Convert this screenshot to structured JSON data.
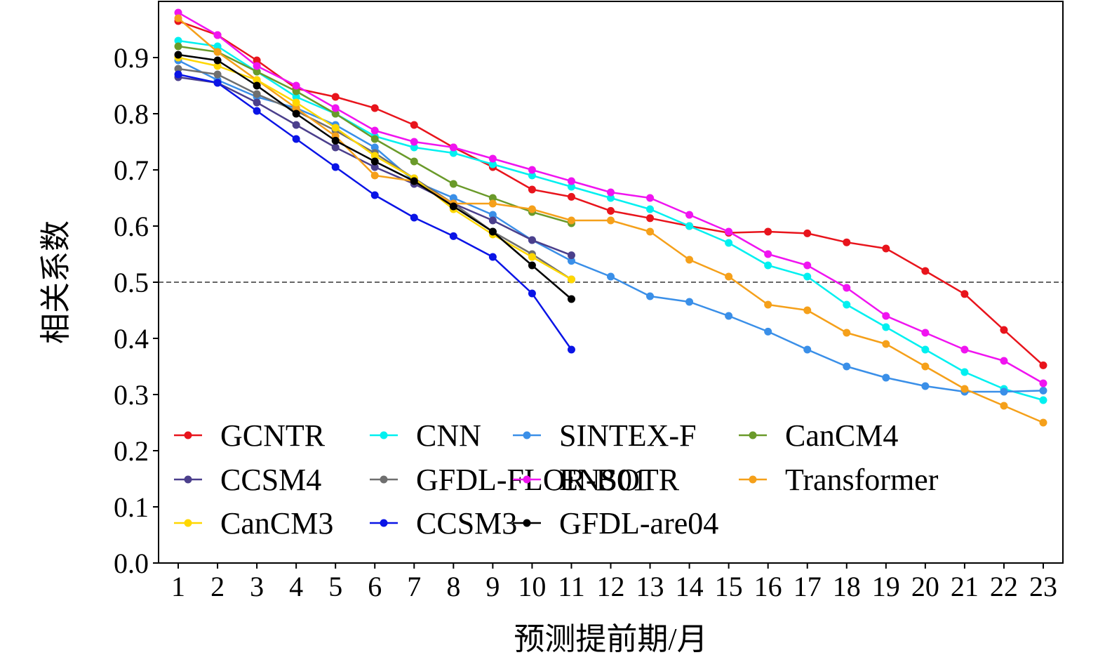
{
  "chart_data": {
    "type": "line",
    "title": "",
    "xlabel": "预测提前期/月",
    "ylabel": "相关系数",
    "xlim": [
      0.5,
      23.5
    ],
    "ylim": [
      0.0,
      1.0
    ],
    "x_ticks": [
      1,
      2,
      3,
      4,
      5,
      6,
      7,
      8,
      9,
      10,
      11,
      12,
      13,
      14,
      15,
      16,
      17,
      18,
      19,
      20,
      21,
      22,
      23
    ],
    "y_ticks": [
      0.0,
      0.1,
      0.2,
      0.3,
      0.4,
      0.5,
      0.6,
      0.7,
      0.8,
      0.9
    ],
    "y_tick_labels": [
      "0.0",
      "0.1",
      "0.2",
      "0.3",
      "0.4",
      "0.5",
      "0.6",
      "0.7",
      "0.8",
      "0.9"
    ],
    "reference_line": {
      "y": 0.5,
      "style": "dashed",
      "color": "#666666"
    },
    "grid": false,
    "legend_position": "lower-left",
    "series": [
      {
        "name": "GCNTR",
        "color": "#e8141c",
        "values": [
          0.965,
          0.94,
          0.895,
          0.845,
          0.83,
          0.81,
          0.78,
          0.74,
          0.705,
          0.665,
          0.652,
          0.627,
          0.614,
          0.6,
          0.588,
          0.59,
          0.587,
          0.571,
          0.56,
          0.52,
          0.479,
          0.415,
          0.352
        ]
      },
      {
        "name": "CNN",
        "color": "#00f0f0",
        "values": [
          0.93,
          0.92,
          0.875,
          0.83,
          0.8,
          0.76,
          0.74,
          0.73,
          0.71,
          0.69,
          0.67,
          0.65,
          0.63,
          0.6,
          0.57,
          0.53,
          0.51,
          0.46,
          0.42,
          0.38,
          0.34,
          0.31,
          0.29
        ]
      },
      {
        "name": "SINTEX-F",
        "color": "#3a8fe8",
        "values": [
          0.895,
          0.86,
          0.83,
          0.81,
          0.78,
          0.74,
          0.68,
          0.65,
          0.62,
          0.575,
          0.538,
          0.51,
          0.475,
          0.465,
          0.44,
          0.412,
          0.38,
          0.35,
          0.33,
          0.315,
          0.305,
          0.305,
          0.307
        ]
      },
      {
        "name": "CanCM4",
        "color": "#6a9a2a",
        "values": [
          0.92,
          0.91,
          0.875,
          0.84,
          0.8,
          0.755,
          0.715,
          0.675,
          0.65,
          0.625,
          0.605
        ]
      },
      {
        "name": "CCSM4",
        "color": "#4b3f8c",
        "values": [
          0.865,
          0.855,
          0.82,
          0.78,
          0.74,
          0.705,
          0.675,
          0.64,
          0.61,
          0.575,
          0.548
        ]
      },
      {
        "name": "GFDL-FLOR-B01",
        "color": "#6f6f6f",
        "values": [
          0.88,
          0.87,
          0.835,
          0.805,
          0.77,
          0.73,
          0.685,
          0.64,
          0.59,
          0.55,
          0.505
        ]
      },
      {
        "name": "ENSOTR",
        "color": "#f014f0",
        "values": [
          0.98,
          0.94,
          0.885,
          0.85,
          0.81,
          0.77,
          0.75,
          0.74,
          0.72,
          0.7,
          0.68,
          0.66,
          0.65,
          0.62,
          0.59,
          0.55,
          0.53,
          0.49,
          0.44,
          0.41,
          0.38,
          0.36,
          0.32
        ]
      },
      {
        "name": "Transformer",
        "color": "#f5a01a",
        "values": [
          0.97,
          0.91,
          0.86,
          0.81,
          0.76,
          0.69,
          0.68,
          0.64,
          0.64,
          0.63,
          0.61,
          0.61,
          0.59,
          0.54,
          0.51,
          0.46,
          0.45,
          0.41,
          0.39,
          0.35,
          0.31,
          0.28,
          0.25
        ]
      },
      {
        "name": "CanCM3",
        "color": "#ffd700",
        "values": [
          0.9,
          0.885,
          0.86,
          0.82,
          0.775,
          0.725,
          0.685,
          0.63,
          0.585,
          0.545,
          0.505
        ]
      },
      {
        "name": "CCSM3",
        "color": "#0a14e6",
        "values": [
          0.87,
          0.855,
          0.805,
          0.755,
          0.705,
          0.655,
          0.615,
          0.582,
          0.545,
          0.48,
          0.38
        ]
      },
      {
        "name": "GFDL-are04",
        "color": "#000000",
        "values": [
          0.905,
          0.895,
          0.85,
          0.8,
          0.752,
          0.715,
          0.68,
          0.635,
          0.59,
          0.53,
          0.47
        ]
      }
    ]
  }
}
